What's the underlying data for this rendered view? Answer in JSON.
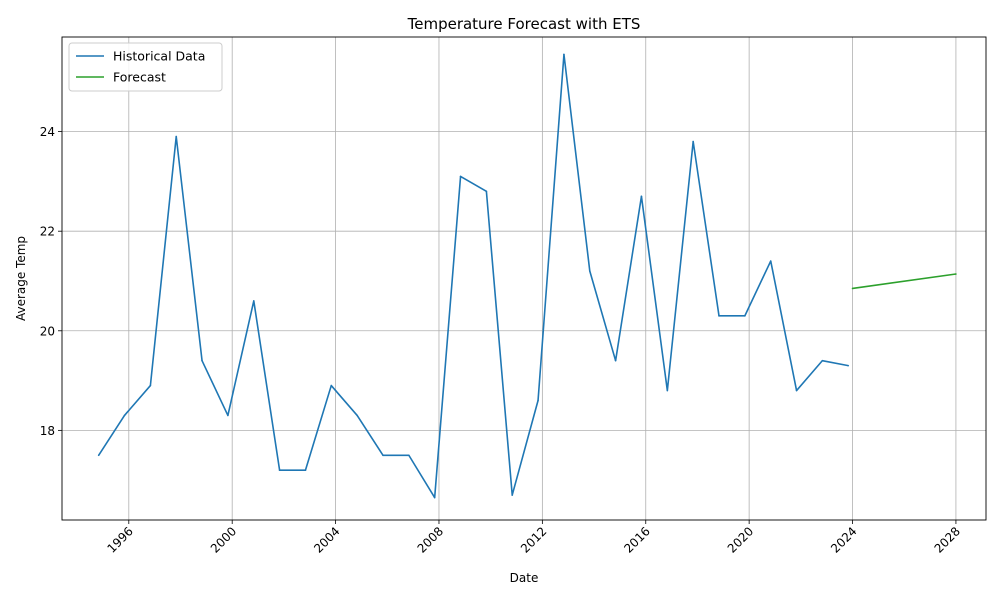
{
  "chart_data": {
    "type": "line",
    "title": "Temperature Forecast with ETS",
    "xlabel": "Date",
    "ylabel": "Average Temp",
    "xlim": [
      "1993-06-01",
      "2029-03-01"
    ],
    "ylim": [
      16.2,
      25.9
    ],
    "x_ticks": [
      "1996",
      "2000",
      "2004",
      "2008",
      "2012",
      "2016",
      "2020",
      "2024",
      "2028"
    ],
    "y_ticks": [
      18,
      20,
      22,
      24
    ],
    "grid": true,
    "legend": "upper-left",
    "series": [
      {
        "name": "Historical Data",
        "color": "#1f77b4",
        "x": [
          "1994-11-01",
          "1995-11-01",
          "1996-11-01",
          "1997-11-01",
          "1998-11-01",
          "1999-11-01",
          "2000-11-01",
          "2001-11-01",
          "2002-11-01",
          "2003-11-01",
          "2004-11-01",
          "2005-11-01",
          "2006-11-01",
          "2007-11-01",
          "2008-11-01",
          "2009-11-01",
          "2010-11-01",
          "2011-11-01",
          "2012-11-01",
          "2013-11-01",
          "2014-11-01",
          "2015-11-01",
          "2016-11-01",
          "2017-11-01",
          "2018-11-01",
          "2019-11-01",
          "2020-11-01",
          "2021-11-01",
          "2022-11-01",
          "2023-11-01"
        ],
        "values": [
          17.5,
          18.3,
          18.9,
          23.9,
          19.4,
          18.3,
          20.6,
          17.2,
          17.2,
          18.9,
          18.3,
          17.5,
          17.5,
          16.65,
          23.1,
          22.8,
          16.7,
          18.6,
          25.55,
          21.2,
          19.4,
          22.7,
          18.8,
          23.8,
          20.3,
          20.3,
          21.4,
          18.8,
          19.4,
          19.3
        ]
      },
      {
        "name": "Forecast",
        "color": "#2ca02c",
        "x": [
          "2024-01-01",
          "2028-01-01"
        ],
        "values": [
          20.85,
          21.14
        ]
      }
    ]
  }
}
